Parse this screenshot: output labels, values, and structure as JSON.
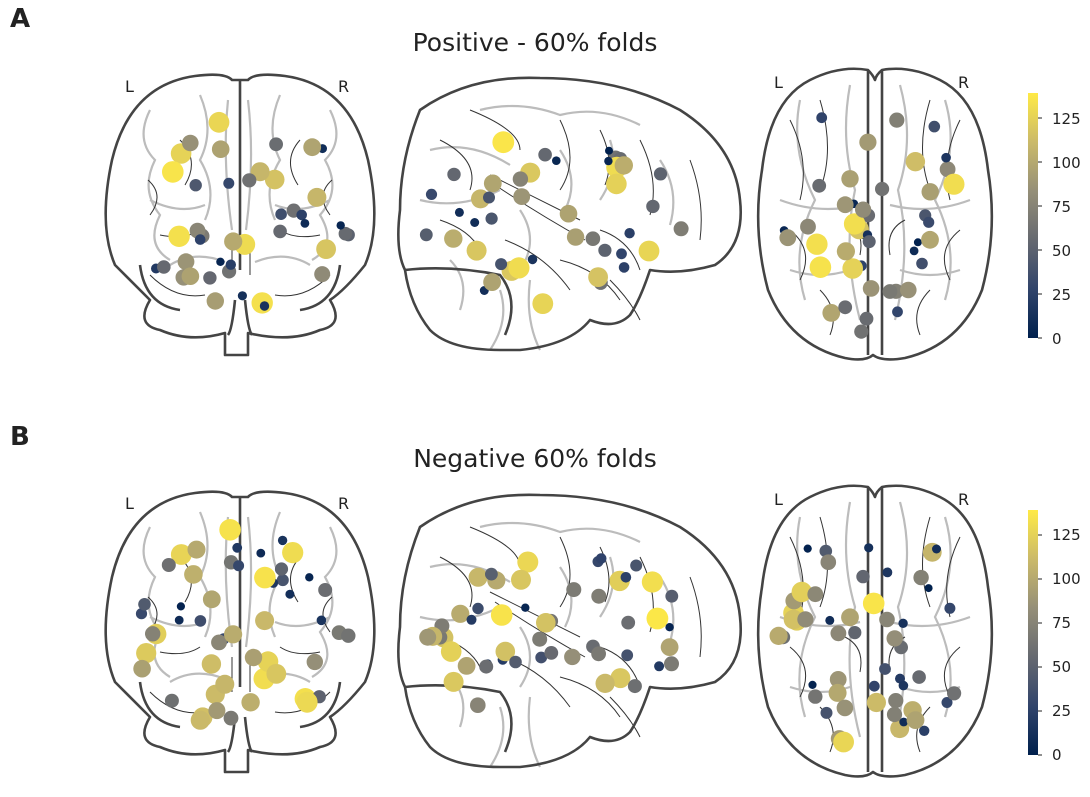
{
  "panels": [
    {
      "letter": "A",
      "title": "Positive - 60% folds",
      "left_label": "L",
      "right_label": "R",
      "colorbar_ticks": [
        "0",
        "25",
        "50",
        "75",
        "100",
        "125"
      ],
      "colorbar_max": 140
    },
    {
      "letter": "B",
      "title": "Negative 60% folds",
      "left_label": "L",
      "right_label": "R",
      "colorbar_ticks": [
        "0",
        "25",
        "50",
        "75",
        "100",
        "125"
      ],
      "colorbar_max": 140
    }
  ],
  "colormap": {
    "name": "cividis",
    "stops": [
      "#00204d",
      "#31446b",
      "#666970",
      "#958f78",
      "#cbba69",
      "#ffea46"
    ]
  }
}
